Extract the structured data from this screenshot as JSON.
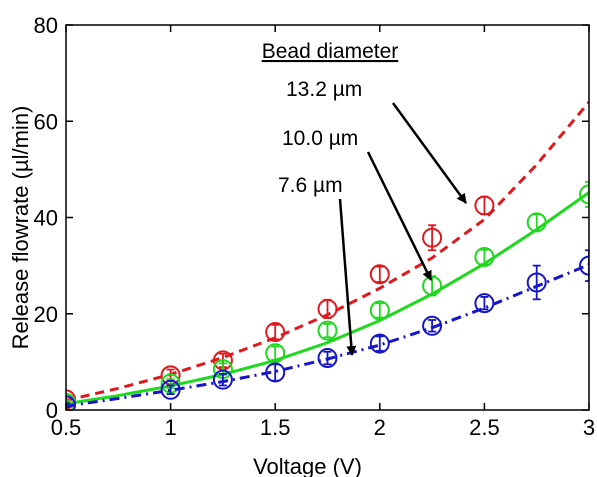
{
  "chart_data": {
    "type": "line",
    "title": "",
    "xlabel": "Voltage (V)",
    "ylabel": "Release flowrate (µl/min)",
    "xlim": [
      0.5,
      3
    ],
    "ylim": [
      0,
      80
    ],
    "xticks": [
      "0.5",
      "1",
      "1.5",
      "2",
      "2.5",
      "3"
    ],
    "yticks": [
      "0",
      "20",
      "40",
      "60",
      "80"
    ],
    "grid": false,
    "legend_title": "Bead diameter",
    "series": [
      {
        "name": "13.2 µm",
        "color": "#e0191e",
        "line_style": "dashed",
        "fit": {
          "x": [
            0.5,
            0.75,
            1,
            1.25,
            1.5,
            1.75,
            2,
            2.25,
            2.5,
            2.75,
            3
          ],
          "y": [
            2,
            4.5,
            7.4,
            10.9,
            15,
            19.8,
            25.3,
            31.6,
            39.6,
            51,
            64
          ]
        },
        "measured": {
          "x": [
            0.5,
            1,
            1.25,
            1.5,
            1.75,
            2,
            2.25,
            2.5
          ],
          "y": [
            2.2,
            7.2,
            10.3,
            16.2,
            21,
            28.2,
            35.8,
            42.5
          ],
          "err": [
            0.6,
            1.2,
            1.4,
            1.5,
            1.9,
            1.6,
            2.6,
            1.8
          ]
        }
      },
      {
        "name": "10.0 µm",
        "color": "#1fd91f",
        "line_style": "solid",
        "fit": {
          "x": [
            0.5,
            0.75,
            1,
            1.25,
            1.5,
            1.75,
            2,
            2.25,
            2.5,
            2.75,
            3
          ],
          "y": [
            1.3,
            3,
            5,
            7.4,
            10.3,
            14,
            18.6,
            24.1,
            30.4,
            37.5,
            45.2
          ]
        },
        "measured": {
          "x": [
            0.5,
            1,
            1.25,
            1.5,
            1.75,
            2,
            2.25,
            2.5,
            2.75,
            3
          ],
          "y": [
            1.5,
            5.5,
            8.5,
            11.8,
            16.5,
            20.7,
            25.8,
            31.8,
            39,
            44.8
          ],
          "err": [
            0.5,
            0.9,
            1.2,
            1.4,
            1.4,
            1.5,
            2.0,
            1.5,
            1.7,
            2.6
          ]
        }
      },
      {
        "name": "7.6 µm",
        "color": "#1616c8",
        "line_style": "dashdot",
        "fit": {
          "x": [
            0.5,
            0.75,
            1,
            1.25,
            1.5,
            1.75,
            2,
            2.25,
            2.5,
            2.75,
            3
          ],
          "y": [
            0.8,
            2.4,
            4.1,
            5.9,
            8,
            10.6,
            13.5,
            17.1,
            21.2,
            25.7,
            30.2
          ]
        },
        "measured": {
          "x": [
            0.5,
            1,
            1.25,
            1.5,
            1.75,
            2,
            2.25,
            2.5,
            2.75,
            3
          ],
          "y": [
            1,
            4.2,
            6.3,
            7.8,
            10.8,
            13.8,
            17.5,
            22.2,
            26.5,
            30
          ],
          "err": [
            0.4,
            0.9,
            1.2,
            1.7,
            1.3,
            1.5,
            1.2,
            1.3,
            3.5,
            3.2
          ]
        }
      }
    ]
  }
}
